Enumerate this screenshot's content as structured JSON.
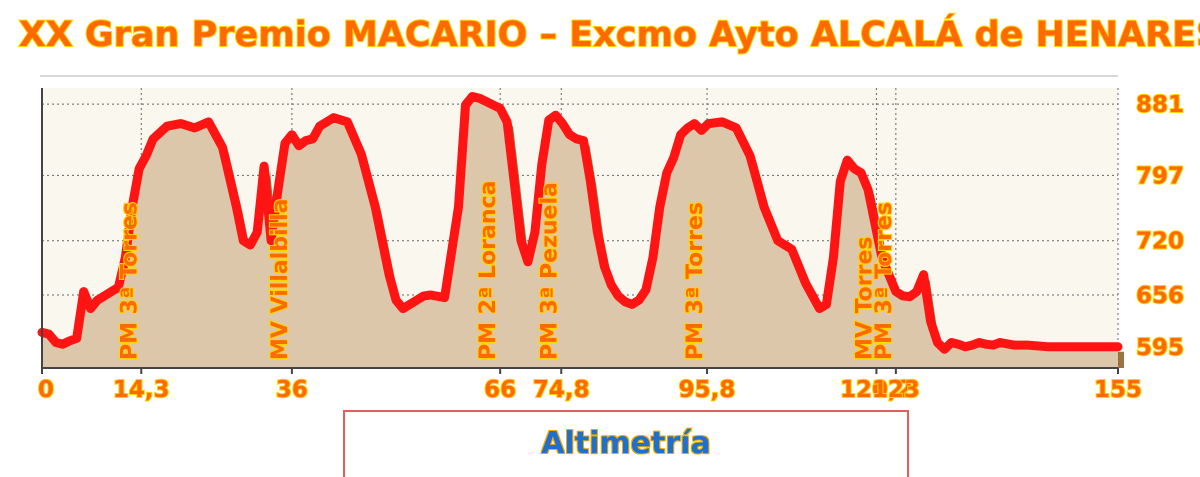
{
  "title": "XX Gran Premio MACARIO – Excmo Ayto ALCALÁ de HENARES",
  "legend_label": "Altimetría",
  "colors": {
    "profile_line": "#ff1414",
    "profile_shadow": "#8a5a1c",
    "area_fill": "#dcc7aa",
    "plot_background": "#faf7ee",
    "grid": "#666666",
    "tick_text": "#ff6a00",
    "tick_outline": "#ffd400",
    "legend_text": "#1d6fd1",
    "legend_border": "#e06060"
  },
  "chart_data": {
    "type": "area",
    "title": "XX Gran Premio MACARIO – Excmo Ayto ALCALÁ de HENARES",
    "xlabel": "",
    "ylabel": "",
    "xlim": [
      0,
      155
    ],
    "ylim": [
      570,
      900
    ],
    "grid": true,
    "x_ticks": [
      "0",
      "14,3",
      "36",
      "66",
      "74,8",
      "95,8",
      "120,2",
      "123",
      "155"
    ],
    "x_tick_values": [
      0,
      14.3,
      36,
      66,
      74.8,
      95.8,
      120.2,
      123,
      155
    ],
    "y_ticks": [
      "881",
      "797",
      "720",
      "656",
      "595"
    ],
    "y_tick_values": [
      881,
      797,
      720,
      656,
      595
    ],
    "series": [
      {
        "x": [
          0,
          1,
          2,
          3,
          4,
          5,
          6,
          7,
          8,
          9,
          10,
          11,
          12,
          13,
          14,
          15,
          16,
          18,
          20,
          22,
          24,
          26,
          28,
          29,
          30,
          31,
          32,
          33,
          34,
          35,
          36,
          37,
          38,
          39,
          40,
          42,
          44,
          46,
          48,
          50,
          51,
          52,
          53,
          54,
          55,
          56,
          58,
          60,
          61,
          62,
          63,
          64,
          65,
          66,
          67,
          68,
          69,
          70,
          71,
          72,
          73,
          74,
          75,
          76,
          77,
          78,
          79,
          80,
          81,
          82,
          83,
          84,
          85,
          86,
          87,
          88,
          89,
          90,
          91,
          92,
          93,
          94,
          95,
          96,
          98,
          100,
          102,
          104,
          106,
          107,
          108,
          109,
          110,
          111,
          112,
          113,
          114,
          115,
          116,
          117,
          118,
          119,
          120,
          121,
          122,
          123,
          124,
          125,
          126,
          127,
          128,
          129,
          130,
          131,
          132,
          133,
          134,
          135,
          136,
          137,
          138,
          140,
          142,
          145,
          148,
          151,
          155
        ],
        "y": [
          612,
          610,
          600,
          598,
          602,
          605,
          660,
          640,
          650,
          655,
          660,
          665,
          700,
          760,
          805,
          820,
          840,
          855,
          858,
          853,
          860,
          830,
          760,
          720,
          715,
          730,
          808,
          720,
          780,
          835,
          845,
          832,
          838,
          840,
          855,
          865,
          860,
          822,
          760,
          680,
          650,
          640,
          645,
          650,
          655,
          656,
          653,
          760,
          880,
          890,
          888,
          884,
          880,
          876,
          860,
          790,
          720,
          695,
          730,
          810,
          862,
          868,
          858,
          845,
          840,
          838,
          790,
          730,
          690,
          668,
          655,
          648,
          645,
          650,
          662,
          700,
          760,
          800,
          818,
          845,
          853,
          858,
          850,
          858,
          860,
          853,
          820,
          760,
          720,
          715,
          710,
          690,
          670,
          655,
          640,
          645,
          700,
          790,
          815,
          805,
          800,
          780,
          740,
          700,
          680,
          660,
          655,
          654,
          660,
          680,
          625,
          600,
          592,
          600,
          598,
          595,
          597,
          600,
          598,
          597,
          600,
          597,
          597,
          595,
          595,
          595,
          595
        ]
      }
    ],
    "annotations": [
      {
        "text": "PM 3ª Torres",
        "x": 14.3
      },
      {
        "text": "MV Villalbilla",
        "x": 36
      },
      {
        "text": "PM 2ª Loranca",
        "x": 66
      },
      {
        "text": "PM 3ª Pezuela",
        "x": 74.8
      },
      {
        "text": "PM 3ª Torres",
        "x": 95.8
      },
      {
        "text": "MV Torres",
        "x": 120.2
      },
      {
        "text": "PM 3ª Torres",
        "x": 123
      }
    ]
  }
}
